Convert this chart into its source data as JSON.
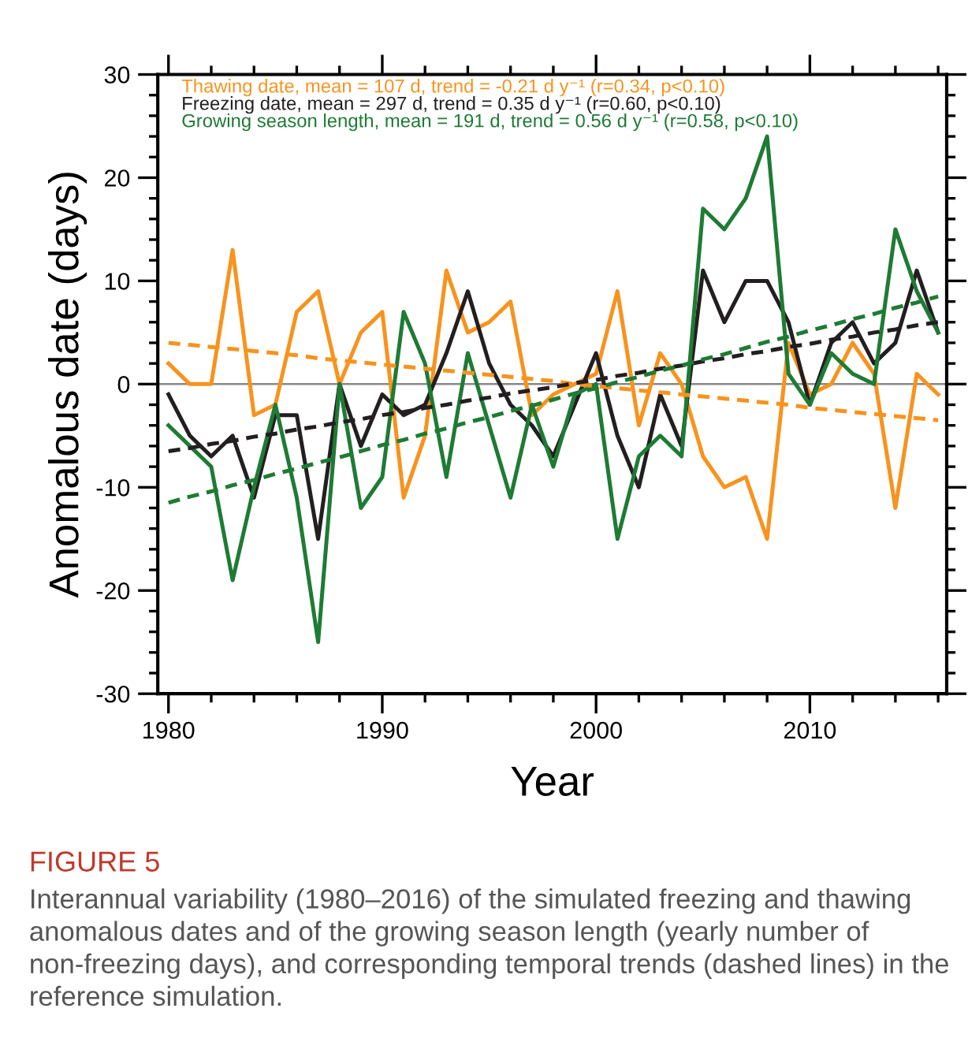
{
  "chart_data": {
    "type": "line",
    "xlabel": "Year",
    "ylabel": "Anomalous date (days)",
    "x": [
      1980,
      1981,
      1982,
      1983,
      1984,
      1985,
      1986,
      1987,
      1988,
      1989,
      1990,
      1991,
      1992,
      1993,
      1994,
      1995,
      1996,
      1997,
      1998,
      1999,
      2000,
      2001,
      2002,
      2003,
      2004,
      2005,
      2006,
      2007,
      2008,
      2009,
      2010,
      2011,
      2012,
      2013,
      2014,
      2015,
      2016
    ],
    "series": [
      {
        "name": "Thawing date, mean = 107 d, trend = -0.21 d y⁻¹ (r=0.34, p<0.10)",
        "color": "#f7931e",
        "values": [
          2,
          0,
          0,
          13,
          -3,
          -2,
          7,
          9,
          0,
          5,
          7,
          -11,
          -5,
          11,
          5,
          6,
          8,
          -3,
          -1,
          0,
          1,
          9,
          -4,
          3,
          0,
          -7,
          -10,
          -9,
          -15,
          4,
          -1,
          0,
          4,
          1,
          -12,
          1,
          -1
        ]
      },
      {
        "name": "Freezing date, mean = 297 d, trend = 0.35 d y⁻¹ (r=0.60, p<0.10)",
        "color": "#231f20",
        "values": [
          -1,
          -5,
          -7,
          -5,
          -11,
          -3,
          -3,
          -15,
          0,
          -6,
          -1,
          -3,
          -2,
          3,
          9,
          2,
          -2,
          -4,
          -7,
          -2,
          3,
          -5,
          -10,
          -1,
          -6,
          11,
          6,
          10,
          10,
          6,
          -2,
          4,
          6,
          2,
          4,
          11,
          5
        ]
      },
      {
        "name": "Growing season length, mean = 191 d, trend = 0.56 d y⁻¹ (r=0.58, p<0.10)",
        "color": "#1e7b34",
        "values": [
          -4,
          -6,
          -8,
          -19,
          -10,
          -2,
          -11,
          -25,
          0,
          -12,
          -9,
          7,
          2,
          -9,
          3,
          -4,
          -11,
          -2,
          -8,
          -1,
          0,
          -15,
          -7,
          -5,
          -7,
          17,
          15,
          18,
          24,
          1,
          -2,
          3,
          1,
          0,
          15,
          9,
          5
        ]
      },
      {
        "color": "#f7931e",
        "values": [
          4.0,
          3.8,
          3.6,
          3.4,
          3.2,
          3.0,
          2.8,
          2.5,
          2.3,
          2.1,
          1.9,
          1.7,
          1.5,
          1.3,
          1.1,
          0.9,
          0.7,
          0.5,
          0.3,
          0.0,
          -0.2,
          -0.4,
          -0.6,
          -0.8,
          -1.0,
          -1.2,
          -1.4,
          -1.6,
          -1.8,
          -2.0,
          -2.3,
          -2.5,
          -2.7,
          -2.9,
          -3.1,
          -3.3,
          -3.5
        ],
        "line_style": "dashed"
      },
      {
        "color": "#231f20",
        "values": [
          -6.5,
          -6.2,
          -5.8,
          -5.5,
          -5.1,
          -4.8,
          -4.4,
          -4.1,
          -3.7,
          -3.4,
          -3.0,
          -2.7,
          -2.3,
          -2.0,
          -1.6,
          -1.3,
          -0.9,
          -0.6,
          -0.3,
          0.1,
          0.4,
          0.8,
          1.1,
          1.5,
          1.8,
          2.2,
          2.5,
          2.9,
          3.2,
          3.6,
          3.9,
          4.3,
          4.6,
          5.0,
          5.3,
          5.7,
          6.0
        ],
        "line_style": "dashed"
      },
      {
        "color": "#1e7b34",
        "values": [
          -11.5,
          -10.9,
          -10.4,
          -9.8,
          -9.3,
          -8.7,
          -8.2,
          -7.6,
          -7.1,
          -6.5,
          -5.9,
          -5.4,
          -4.8,
          -4.3,
          -3.7,
          -3.2,
          -2.6,
          -2.1,
          -1.5,
          -0.9,
          -0.4,
          0.2,
          0.7,
          1.3,
          1.8,
          2.4,
          2.9,
          3.5,
          4.1,
          4.6,
          5.2,
          5.7,
          6.3,
          6.8,
          7.4,
          7.9,
          8.5
        ],
        "line_style": "dashed"
      }
    ],
    "xlim": [
      1979.5,
      2016.4
    ],
    "ylim": [
      -30,
      30
    ],
    "xticks": [
      1980,
      {
        "value": 1982,
        "label": null
      },
      {
        "value": 1984,
        "label": null
      },
      {
        "value": 1986,
        "label": null
      },
      {
        "value": 1988,
        "label": null
      },
      1990,
      {
        "value": 1992,
        "label": null
      },
      {
        "value": 1994,
        "label": null
      },
      {
        "value": 1996,
        "label": null
      },
      {
        "value": 1998,
        "label": null
      },
      2000,
      {
        "value": 2002,
        "label": null
      },
      {
        "value": 2004,
        "label": null
      },
      {
        "value": 2006,
        "label": null
      },
      {
        "value": 2008,
        "label": null
      },
      2010,
      {
        "value": 2012,
        "label": null
      },
      {
        "value": 2014,
        "label": null
      },
      {
        "value": 2016,
        "label": null
      }
    ],
    "yticks": [
      -30,
      {
        "value": -28,
        "label": null
      },
      {
        "value": -26,
        "label": null
      },
      {
        "value": -24,
        "label": null
      },
      {
        "value": -22,
        "label": null
      },
      -20,
      {
        "value": -18,
        "label": null
      },
      {
        "value": -16,
        "label": null
      },
      {
        "value": -14,
        "label": null
      },
      {
        "value": -12,
        "label": null
      },
      -10,
      {
        "value": -8,
        "label": null
      },
      {
        "value": -6,
        "label": null
      },
      {
        "value": -4,
        "label": null
      },
      {
        "value": -2,
        "label": null
      },
      0,
      {
        "value": 2,
        "label": null
      },
      {
        "value": 4,
        "label": null
      },
      {
        "value": 6,
        "label": null
      },
      {
        "value": 8,
        "label": null
      },
      10,
      {
        "value": 12,
        "label": null
      },
      {
        "value": 14,
        "label": null
      },
      {
        "value": 16,
        "label": null
      },
      {
        "value": 18,
        "label": null
      },
      20,
      {
        "value": 22,
        "label": null
      },
      {
        "value": 24,
        "label": null
      },
      {
        "value": 26,
        "label": null
      },
      {
        "value": 28,
        "label": null
      },
      30
    ],
    "ref_lines": [
      {
        "axis": "y",
        "value": 0,
        "color": "#888888"
      }
    ],
    "grid": false,
    "marker": "none",
    "line_style": "solid",
    "annotations": [
      "FIGURE 5",
      "Interannual variability (1980–2016) of the simulated freezing and thawing anomalous dates and of the growing season length (yearly number of non-freezing days), and corresponding temporal trends (dashed lines) in the reference simulation."
    ]
  }
}
